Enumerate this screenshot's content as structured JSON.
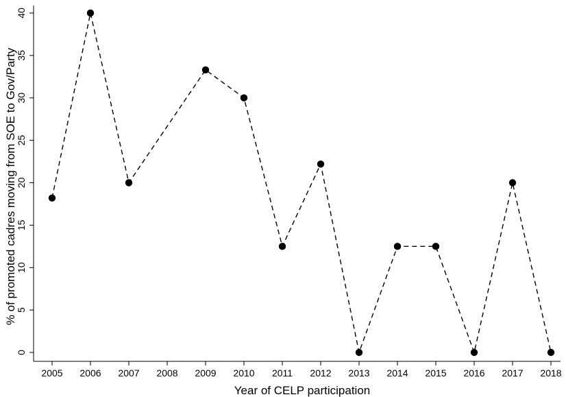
{
  "chart_data": {
    "type": "line",
    "xlabel": "Year of CELP participation",
    "ylabel": "% of promoted cadres moving from SOE to Gov/Party",
    "x": [
      2005,
      2006,
      2007,
      2009,
      2010,
      2011,
      2012,
      2013,
      2014,
      2015,
      2016,
      2017,
      2018
    ],
    "values": [
      18.2,
      40,
      20,
      33.3,
      30,
      12.5,
      22.2,
      0,
      12.5,
      12.5,
      0,
      20,
      0
    ],
    "x_ticks": [
      "2005",
      "2006",
      "2007",
      "2008",
      "2009",
      "2010",
      "2011",
      "2012",
      "2013",
      "2014",
      "2015",
      "2016",
      "2017",
      "2018"
    ],
    "y_ticks": [
      "0",
      "5",
      "10",
      "15",
      "20",
      "25",
      "30",
      "35",
      "40"
    ],
    "xlim": [
      2005,
      2018
    ],
    "ylim": [
      0,
      40
    ],
    "grid": false,
    "line_style": "dashed",
    "marker": "filled-circle",
    "color": "#000000"
  }
}
